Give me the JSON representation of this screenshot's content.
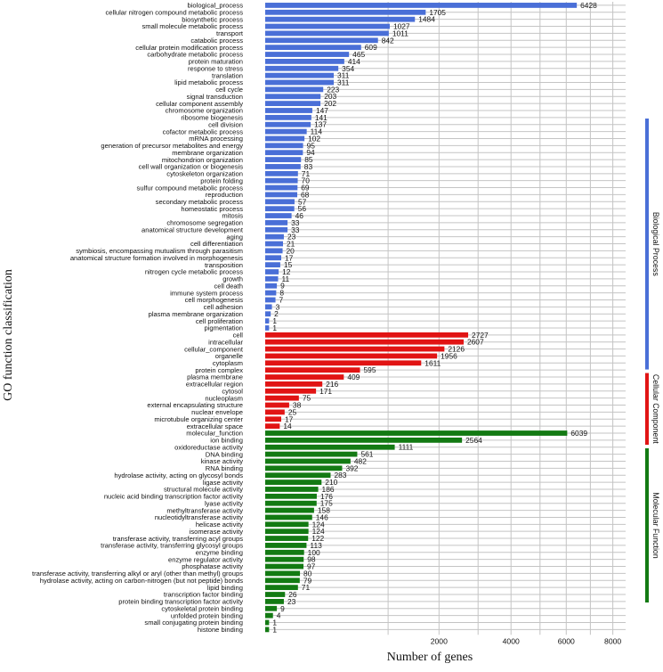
{
  "chart_data": {
    "type": "bar",
    "orientation": "horizontal",
    "xlabel": "Number of genes",
    "ylabel": "GO function classification",
    "x_scale": "sqrt",
    "xlim": [
      0,
      8600
    ],
    "xticks": [
      2000,
      4000,
      6000,
      8000
    ],
    "grid": true,
    "colors": {
      "Biological Process": "#4a6fd7",
      "Cellular Component": "#e11414",
      "Molecular Function": "#137a13"
    },
    "groups": [
      {
        "name": "Biological Process",
        "categories": [
          "biological_process",
          "cellular nitrogen compound metabolic process",
          "biosynthetic process",
          "small molecule metabolic process",
          "transport",
          "catabolic process",
          "cellular protein modification process",
          "carbohydrate metabolic process",
          "protein maturation",
          "response to stress",
          "translation",
          "lipid metabolic process",
          "cell cycle",
          "signal transduction",
          "cellular component assembly",
          "chromosome organization",
          "ribosome biogenesis",
          "cell division",
          "cofactor metabolic process",
          "mRNA processing",
          "generation of precursor metabolites and energy",
          "membrane organization",
          "mitochondrion organization",
          "cell wall organization or biogenesis",
          "cytoskeleton organization",
          "protein folding",
          "sulfur compound metabolic process",
          "reproduction",
          "secondary metabolic process",
          "homeostatic process",
          "mitosis",
          "chromosome segregation",
          "anatomical structure development",
          "aging",
          "cell differentiation",
          "symbiosis, encompassing mutualism through parasitism",
          "anatomical structure formation involved in morphogenesis",
          "transposition",
          "nitrogen cycle metabolic process",
          "growth",
          "cell death",
          "immune system process",
          "cell morphogenesis",
          "cell adhesion",
          "plasma membrane organization",
          "cell proliferation",
          "pigmentation"
        ],
        "values": [
          6428,
          1705,
          1484,
          1027,
          1011,
          842,
          609,
          465,
          414,
          354,
          311,
          311,
          223,
          203,
          202,
          147,
          141,
          137,
          114,
          102,
          95,
          94,
          85,
          83,
          71,
          70,
          69,
          68,
          57,
          56,
          46,
          33,
          33,
          23,
          21,
          20,
          17,
          15,
          12,
          11,
          9,
          8,
          7,
          3,
          2,
          1,
          1
        ]
      },
      {
        "name": "Cellular Component",
        "categories": [
          "cell",
          "intracellular",
          "cellular_component",
          "organelle",
          "cytoplasm",
          "protein complex",
          "plasma membrane",
          "extracellular region",
          "cytosol",
          "nucleoplasm",
          "external encapsulating structure",
          "nuclear envelope",
          "microtubule organizing center",
          "extracellular space"
        ],
        "values": [
          2727,
          2607,
          2126,
          1956,
          1611,
          595,
          409,
          216,
          171,
          75,
          38,
          25,
          17,
          14
        ]
      },
      {
        "name": "Molecular Function",
        "categories": [
          "molecular_function",
          "ion binding",
          "oxidoreductase activity",
          "DNA binding",
          "kinase activity",
          "RNA binding",
          "hydrolase activity, acting on glycosyl bonds",
          "ligase activity",
          "structural molecule activity",
          "nucleic acid binding transcription factor activity",
          "lyase activity",
          "methyltransferase activity",
          "nucleotidyltransferase activity",
          "helicase activity",
          "isomerase activity",
          "transferase activity, transferring acyl groups",
          "transferase activity, transferring glycosyl groups",
          "enzyme binding",
          "enzyme regulator activity",
          "phosphatase activity",
          "transferase activity, transferring alkyl or aryl (other than methyl) groups",
          "hydrolase activity, acting on carbon-nitrogen (but not peptide) bonds",
          "lipid binding",
          "transcription factor binding",
          "protein binding transcription factor activity",
          "cytoskeletal protein binding",
          "unfolded protein binding",
          "small conjugating protein binding",
          "histone binding"
        ],
        "values": [
          6039,
          2564,
          1111,
          561,
          482,
          392,
          283,
          210,
          186,
          176,
          175,
          158,
          146,
          124,
          124,
          122,
          113,
          100,
          98,
          97,
          80,
          79,
          71,
          26,
          23,
          9,
          4,
          1,
          1
        ]
      }
    ]
  }
}
